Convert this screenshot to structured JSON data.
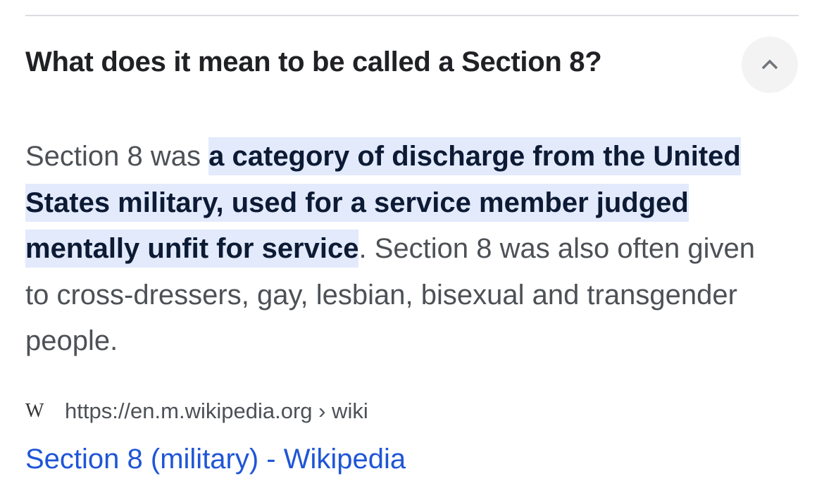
{
  "question": "What does it mean to be called a Section 8?",
  "toggle_icon": "chevron-up-icon",
  "answer": {
    "before": "Section 8 was ",
    "highlight": "a category of discharge from the United States military, used for a service member judged mentally unfit for service",
    "after": ". Section 8 was also often given to cross-dressers, gay, lesbian, bisexual and transgender people."
  },
  "source": {
    "favicon": "W",
    "url": "https://en.m.wikipedia.org › wiki",
    "title": "Section 8 (military) - Wikipedia"
  },
  "colors": {
    "highlight_bg": "#e2eafc",
    "link": "#1f55d6",
    "text": "#4d5156"
  }
}
